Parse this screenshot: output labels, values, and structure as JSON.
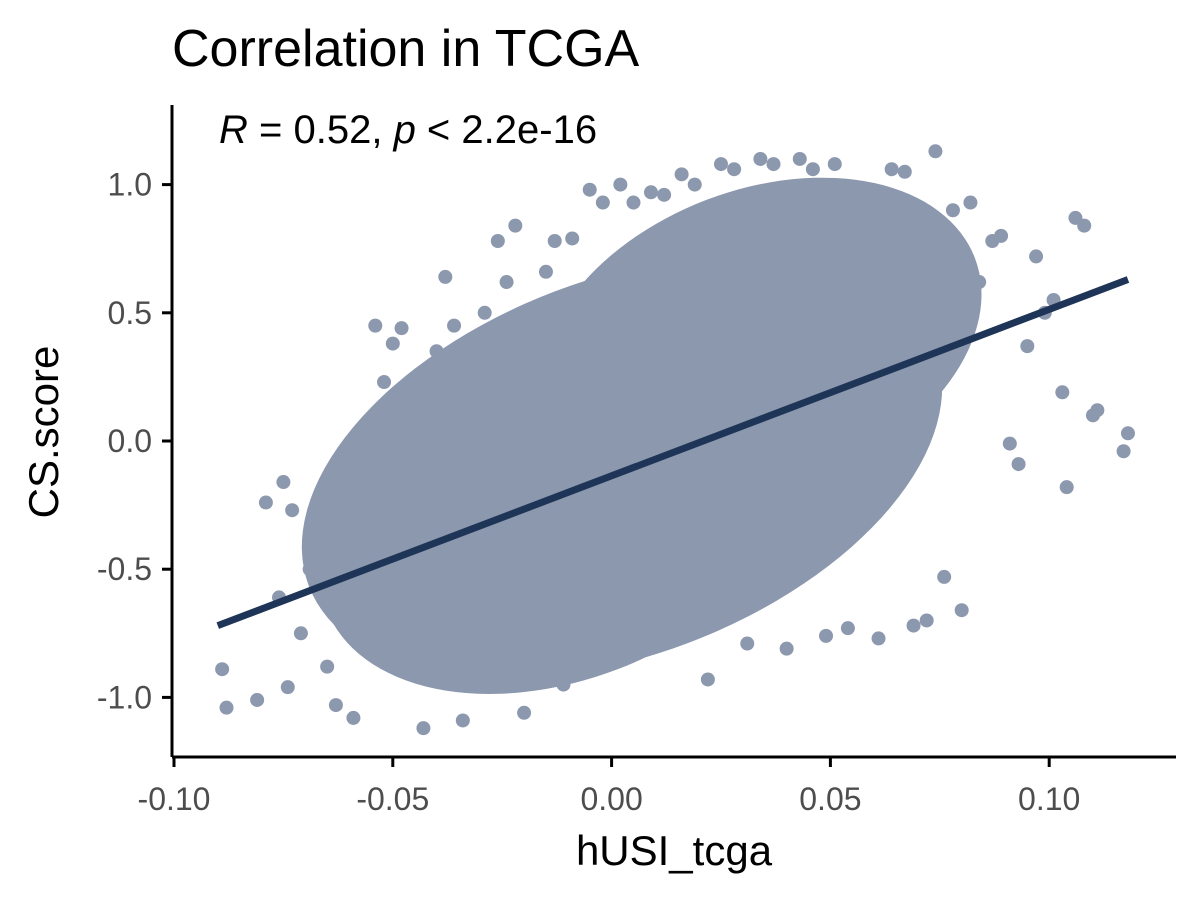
{
  "chart_data": {
    "type": "scatter",
    "title": "Correlation in TCGA",
    "xlabel": "hUSI_tcga",
    "ylabel": "CS.score",
    "xlim": [
      -0.1,
      0.13
    ],
    "ylim": [
      -1.2,
      1.3
    ],
    "x_ticks": [
      -0.1,
      -0.05,
      0.0,
      0.05,
      0.1
    ],
    "x_tick_labels": [
      "-0.10",
      "-0.05",
      "0.00",
      "0.05",
      "0.10"
    ],
    "y_ticks": [
      -1.0,
      -0.5,
      0.0,
      0.5,
      1.0
    ],
    "y_tick_labels": [
      "-1.0",
      "-0.5",
      "0.0",
      "0.5",
      "1.0"
    ],
    "grid": false,
    "annotation": {
      "R_symbol": "R",
      "R_text": " = 0.52, ",
      "p_symbol": "p",
      "p_text": " < 2.2e-16"
    },
    "regression_line": {
      "x": [
        -0.09,
        0.118
      ],
      "y": [
        -0.72,
        0.63
      ]
    },
    "point_color": "#8c98ae",
    "line_color": "#1f3557",
    "points": [
      [
        -0.089,
        -0.89
      ],
      [
        -0.088,
        -1.04
      ],
      [
        -0.081,
        -1.01
      ],
      [
        -0.079,
        -0.24
      ],
      [
        -0.076,
        -0.61
      ],
      [
        -0.075,
        -0.16
      ],
      [
        -0.074,
        -0.96
      ],
      [
        -0.073,
        -0.27
      ],
      [
        -0.071,
        -0.75
      ],
      [
        -0.069,
        -0.5
      ],
      [
        -0.067,
        -0.29
      ],
      [
        -0.065,
        -0.88
      ],
      [
        -0.063,
        -1.03
      ],
      [
        -0.061,
        -0.37
      ],
      [
        -0.059,
        -1.08
      ],
      [
        -0.056,
        -0.28
      ],
      [
        -0.054,
        0.45
      ],
      [
        -0.052,
        0.23
      ],
      [
        -0.05,
        0.38
      ],
      [
        -0.048,
        0.44
      ],
      [
        -0.045,
        0.12
      ],
      [
        -0.043,
        -1.12
      ],
      [
        -0.041,
        -0.02
      ],
      [
        -0.04,
        0.35
      ],
      [
        -0.038,
        0.64
      ],
      [
        -0.036,
        0.45
      ],
      [
        -0.034,
        -1.09
      ],
      [
        -0.031,
        0.4
      ],
      [
        -0.029,
        0.5
      ],
      [
        -0.026,
        0.78
      ],
      [
        -0.024,
        0.62
      ],
      [
        -0.022,
        0.84
      ],
      [
        -0.02,
        -1.06
      ],
      [
        -0.017,
        0.5
      ],
      [
        -0.015,
        0.66
      ],
      [
        -0.013,
        0.78
      ],
      [
        -0.011,
        -0.95
      ],
      [
        -0.009,
        0.79
      ],
      [
        -0.005,
        0.98
      ],
      [
        -0.002,
        0.93
      ],
      [
        0.002,
        1.0
      ],
      [
        0.005,
        0.93
      ],
      [
        0.009,
        0.97
      ],
      [
        0.012,
        0.96
      ],
      [
        0.016,
        1.04
      ],
      [
        0.019,
        1.0
      ],
      [
        0.022,
        -0.93
      ],
      [
        0.025,
        1.08
      ],
      [
        0.028,
        1.06
      ],
      [
        0.031,
        -0.79
      ],
      [
        0.034,
        1.1
      ],
      [
        0.037,
        1.08
      ],
      [
        0.04,
        -0.81
      ],
      [
        0.043,
        1.1
      ],
      [
        0.046,
        1.06
      ],
      [
        0.049,
        -0.76
      ],
      [
        0.051,
        1.08
      ],
      [
        0.054,
        -0.73
      ],
      [
        0.058,
        0.98
      ],
      [
        0.061,
        -0.77
      ],
      [
        0.064,
        1.06
      ],
      [
        0.067,
        1.05
      ],
      [
        0.069,
        -0.72
      ],
      [
        0.072,
        -0.7
      ],
      [
        0.074,
        1.13
      ],
      [
        0.076,
        -0.53
      ],
      [
        0.078,
        0.9
      ],
      [
        0.08,
        -0.66
      ],
      [
        0.082,
        0.93
      ],
      [
        0.084,
        0.62
      ],
      [
        0.087,
        0.78
      ],
      [
        0.089,
        0.8
      ],
      [
        0.091,
        -0.01
      ],
      [
        0.093,
        -0.09
      ],
      [
        0.095,
        0.37
      ],
      [
        0.097,
        0.72
      ],
      [
        0.099,
        0.5
      ],
      [
        0.101,
        0.55
      ],
      [
        0.103,
        0.19
      ],
      [
        0.104,
        -0.18
      ],
      [
        0.106,
        0.87
      ],
      [
        0.108,
        0.84
      ],
      [
        0.11,
        0.1
      ],
      [
        0.111,
        0.12
      ],
      [
        0.117,
        -0.04
      ],
      [
        0.118,
        0.03
      ]
    ]
  }
}
